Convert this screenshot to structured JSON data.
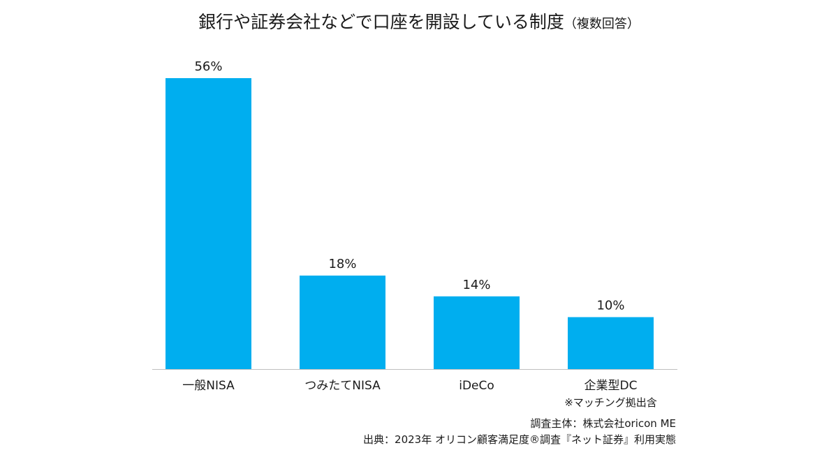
{
  "chart_data": {
    "type": "bar",
    "title": "銀行や証券会社などで口座を開設している制度",
    "subtitle": "（複数回答）",
    "categories": [
      "一般NISA",
      "つみたてNISA",
      "iDeCo",
      "企業型DC"
    ],
    "category_notes": [
      "",
      "",
      "",
      "※マッチング拠出含"
    ],
    "values": [
      56,
      18,
      14,
      10
    ],
    "data_labels": [
      "56%",
      "18%",
      "14%",
      "10%"
    ],
    "unit": "%",
    "ylim": [
      0,
      56
    ],
    "grid": false,
    "legend": "none",
    "bar_color": "#00AEEF",
    "axis_color": "#BFBFBF"
  },
  "credits": {
    "line1": "調査主体：株式会社oricon ME",
    "line2": "出典：2023年 オリコン顧客満足度®調査『ネット証券』利用実態"
  }
}
